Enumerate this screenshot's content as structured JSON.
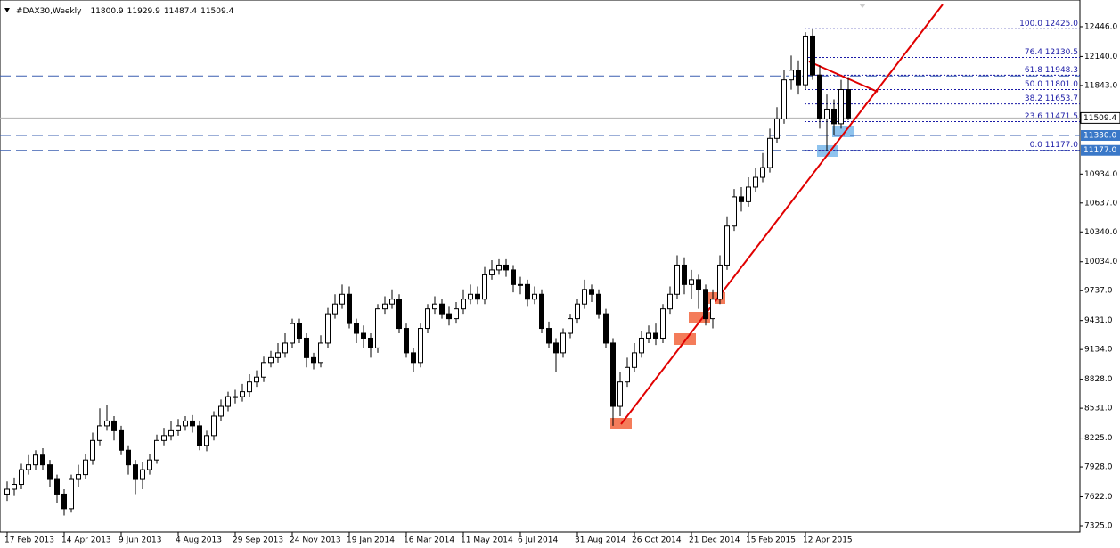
{
  "chart_data": {
    "type": "candlestick",
    "header": {
      "symbol": "#DAX30,Weekly",
      "ohlc": [
        11800.9,
        11929.9,
        11487.4,
        11509.4
      ]
    },
    "categories": [
      "17 Feb 2013",
      null,
      null,
      null,
      null,
      null,
      null,
      null,
      "14 Apr 2013",
      null,
      null,
      null,
      null,
      null,
      null,
      null,
      "9 Jun 2013",
      null,
      null,
      null,
      null,
      null,
      null,
      null,
      "4 Aug 2013",
      null,
      null,
      null,
      null,
      null,
      null,
      null,
      "29 Sep 2013",
      null,
      null,
      null,
      null,
      null,
      null,
      null,
      "24 Nov 2013",
      null,
      null,
      null,
      null,
      null,
      null,
      null,
      "19 Jan 2014",
      null,
      null,
      null,
      null,
      null,
      null,
      null,
      "16 Mar 2014",
      null,
      null,
      null,
      null,
      null,
      null,
      null,
      "11 May 2014",
      null,
      null,
      null,
      null,
      null,
      null,
      null,
      "6 Jul 2014",
      null,
      null,
      null,
      null,
      null,
      null,
      null,
      "31 Aug 2014",
      null,
      null,
      null,
      null,
      null,
      null,
      null,
      "26 Oct 2014",
      null,
      null,
      null,
      null,
      null,
      null,
      null,
      "21 Dec 2014",
      null,
      null,
      null,
      null,
      null,
      null,
      null,
      "15 Feb 2015",
      null,
      null,
      null,
      null,
      null,
      null,
      null,
      "12 Apr 2015",
      null,
      null,
      null,
      null,
      null,
      null
    ],
    "open": [
      7650,
      7700,
      7750,
      7900,
      7950,
      8050,
      7950,
      7800,
      7650,
      7500,
      7800,
      7850,
      8000,
      8200,
      8350,
      8400,
      8300,
      8100,
      7950,
      7800,
      7900,
      8000,
      8200,
      8250,
      8300,
      8350,
      8400,
      8350,
      8150,
      8250,
      8450,
      8550,
      8650,
      8650,
      8700,
      8800,
      8850,
      9000,
      9050,
      9100,
      9200,
      9400,
      9250,
      9050,
      9000,
      9200,
      9500,
      9600,
      9700,
      9400,
      9300,
      9250,
      9150,
      9550,
      9600,
      9650,
      9350,
      9100,
      9000,
      9350,
      9550,
      9600,
      9500,
      9450,
      9550,
      9650,
      9700,
      9650,
      9900,
      9950,
      10000,
      9950,
      9800,
      9800,
      9650,
      9700,
      9350,
      9200,
      9100,
      9300,
      9450,
      9600,
      9750,
      9700,
      9500,
      9200,
      8550,
      8800,
      8950,
      9100,
      9250,
      9300,
      9250,
      9550,
      9700,
      10000,
      9800,
      9850,
      9750,
      9450,
      9650,
      10000,
      10400,
      10700,
      10650,
      10800,
      10900,
      11000,
      11300,
      11500,
      11900,
      12000,
      11850,
      12350,
      11950,
      11500,
      11600,
      11450,
      11800.9
    ],
    "high": [
      7780,
      7820,
      7960,
      8050,
      8100,
      8120,
      8000,
      7850,
      7700,
      7850,
      7950,
      8060,
      8280,
      8530,
      8560,
      8450,
      8350,
      8150,
      8000,
      7980,
      8060,
      8260,
      8330,
      8400,
      8420,
      8450,
      8460,
      8400,
      8300,
      8500,
      8620,
      8700,
      8720,
      8780,
      8880,
      8920,
      9060,
      9120,
      9200,
      9300,
      9450,
      9450,
      9300,
      9100,
      9280,
      9560,
      9700,
      9800,
      9780,
      9450,
      9380,
      9300,
      9600,
      9680,
      9750,
      9700,
      9400,
      9150,
      9400,
      9600,
      9680,
      9650,
      9580,
      9620,
      9750,
      9800,
      9780,
      9980,
      10050,
      10060,
      10060,
      10000,
      9880,
      9850,
      9780,
      9750,
      9420,
      9250,
      9350,
      9500,
      9650,
      9850,
      9800,
      9750,
      9550,
      9250,
      8900,
      9050,
      9200,
      9320,
      9380,
      9400,
      9600,
      9780,
      10100,
      10080,
      9950,
      9900,
      9800,
      9750,
      10100,
      10500,
      10780,
      10800,
      10900,
      11000,
      11150,
      11400,
      11620,
      12000,
      12150,
      12100,
      12390,
      12425,
      12050,
      11750,
      11700,
      11900,
      11929.9
    ],
    "low": [
      7580,
      7630,
      7700,
      7850,
      7900,
      7900,
      7720,
      7560,
      7430,
      7460,
      7720,
      7800,
      7950,
      8150,
      8300,
      8200,
      8050,
      7850,
      7650,
      7700,
      7850,
      7960,
      8150,
      8200,
      8250,
      8300,
      8280,
      8100,
      8090,
      8200,
      8400,
      8500,
      8580,
      8600,
      8650,
      8750,
      8800,
      8950,
      9000,
      9050,
      9150,
      9200,
      8950,
      8930,
      8950,
      9150,
      9450,
      9550,
      9350,
      9200,
      9150,
      9050,
      9100,
      9500,
      9550,
      9300,
      9050,
      8900,
      8950,
      9300,
      9500,
      9450,
      9380,
      9400,
      9500,
      9600,
      9600,
      9600,
      9850,
      9900,
      9880,
      9720,
      9700,
      9580,
      9600,
      9300,
      9150,
      8900,
      9050,
      9250,
      9400,
      9550,
      9620,
      9450,
      9150,
      8350,
      8450,
      8750,
      8900,
      9050,
      9200,
      9180,
      9200,
      9500,
      9650,
      9700,
      9650,
      9550,
      9380,
      9350,
      9600,
      9950,
      10350,
      10550,
      10600,
      10750,
      10850,
      10950,
      11250,
      11450,
      11800,
      11750,
      11800,
      11900,
      11400,
      11177,
      11330,
      11400,
      11487.4
    ],
    "close": [
      7700,
      7750,
      7900,
      7950,
      8050,
      7950,
      7800,
      7650,
      7500,
      7800,
      7850,
      8000,
      8200,
      8350,
      8400,
      8300,
      8100,
      7950,
      7800,
      7900,
      8000,
      8200,
      8250,
      8300,
      8350,
      8400,
      8350,
      8150,
      8250,
      8450,
      8550,
      8650,
      8650,
      8700,
      8800,
      8850,
      9000,
      9050,
      9100,
      9200,
      9400,
      9250,
      9050,
      9000,
      9200,
      9500,
      9600,
      9700,
      9400,
      9300,
      9250,
      9150,
      9550,
      9600,
      9650,
      9350,
      9100,
      9000,
      9350,
      9550,
      9600,
      9500,
      9450,
      9550,
      9650,
      9700,
      9650,
      9900,
      9950,
      10000,
      9950,
      9800,
      9800,
      9650,
      9700,
      9350,
      9200,
      9100,
      9300,
      9450,
      9600,
      9750,
      9700,
      9500,
      9200,
      8550,
      8800,
      8950,
      9100,
      9250,
      9300,
      9250,
      9550,
      9700,
      10000,
      9800,
      9850,
      9750,
      9450,
      9650,
      10000,
      10400,
      10700,
      10650,
      10800,
      10900,
      11000,
      11300,
      11500,
      11900,
      12000,
      11850,
      12350,
      11950,
      11500,
      11600,
      11450,
      11800.9,
      11509.4
    ],
    "ylim": [
      7261,
      12720
    ],
    "yticks": [
      {
        "value": 12446,
        "label": "12446.0"
      },
      {
        "value": 12140,
        "label": "12140.0"
      },
      {
        "value": 11843,
        "label": "11843.0"
      },
      {
        "value": 10934,
        "label": "10934.0"
      },
      {
        "value": 10637,
        "label": "10637.0"
      },
      {
        "value": 10340,
        "label": "10340.0"
      },
      {
        "value": 10034,
        "label": "10034.0"
      },
      {
        "value": 9737,
        "label": "9737.0"
      },
      {
        "value": 9431,
        "label": "9431.0"
      },
      {
        "value": 9134,
        "label": "9134.0"
      },
      {
        "value": 8828,
        "label": "8828.0"
      },
      {
        "value": 8531,
        "label": "8531.0"
      },
      {
        "value": 8225,
        "label": "8225.0"
      },
      {
        "value": 7928,
        "label": "7928.0"
      },
      {
        "value": 7622,
        "label": "7622.0"
      },
      {
        "value": 7325,
        "label": "7325.0"
      }
    ],
    "last_price": 11509.4,
    "levels": [
      11940,
      {
        "value": 11330,
        "label": "11330.0"
      },
      {
        "value": 11177,
        "label": "11177.0"
      }
    ],
    "fib_levels": [
      {
        "value": 12425,
        "label": "100.0 12425.0"
      },
      {
        "value": 12130.5,
        "label": "76.4 12130.5"
      },
      {
        "value": 11948.3,
        "label": "61.8 11948.3"
      },
      {
        "value": 11801,
        "label": "50.0 11801.0"
      },
      {
        "value": 11653.7,
        "label": "38.2 11653.7"
      },
      {
        "value": 11471.5,
        "label": "23.6 11471.5"
      },
      {
        "value": 11177,
        "label": "0.0 11177.0"
      }
    ],
    "bull_color": "#ffffff",
    "bear_color": "#000000"
  }
}
